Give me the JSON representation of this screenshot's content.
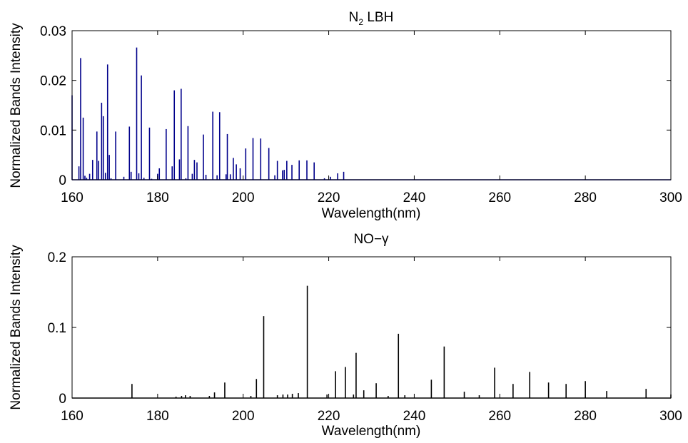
{
  "chart_data": [
    {
      "type": "bar",
      "title": "N",
      "title_subscript": "2",
      "title_rest": " LBH",
      "xlabel": "Wavelength(nm)",
      "ylabel": "Normalized Bands Intensity",
      "xlim": [
        160,
        300
      ],
      "ylim": [
        0,
        0.03
      ],
      "xticks": [
        "160",
        "180",
        "200",
        "220",
        "240",
        "260",
        "280",
        "300"
      ],
      "yticks": [
        "0",
        "0.01",
        "0.02",
        "0.03"
      ],
      "color": "#00008b",
      "grid": false,
      "x": [
        160.0,
        161.6,
        162.0,
        162.6,
        163.0,
        163.4,
        164.1,
        164.8,
        165.8,
        166.2,
        166.9,
        167.3,
        167.8,
        168.3,
        168.7,
        169.1,
        170.2,
        172.1,
        173.4,
        173.8,
        175.1,
        175.6,
        176.2,
        176.8,
        178.1,
        178.6,
        180.0,
        180.4,
        182.0,
        183.4,
        183.9,
        185.1,
        185.5,
        186.6,
        187.1,
        188.1,
        188.6,
        189.2,
        190.7,
        191.3,
        192.9,
        193.9,
        194.5,
        196.0,
        196.3,
        197.0,
        197.7,
        198.4,
        199.3,
        200.6,
        202.3,
        204.1,
        206.0,
        207.4,
        208.0,
        209.2,
        209.6,
        210.2,
        211.4,
        213.1,
        214.9,
        216.6,
        219.0,
        220.4,
        222.1,
        223.5
      ],
      "values": [
        0.017,
        0.0027,
        0.0245,
        0.0125,
        0.0008,
        0.0004,
        0.0012,
        0.004,
        0.0097,
        0.0038,
        0.0155,
        0.0128,
        0.0014,
        0.0232,
        0.005,
        0.0003,
        0.0097,
        0.0006,
        0.0107,
        0.0016,
        0.0266,
        0.0013,
        0.021,
        0.0004,
        0.0105,
        0.0002,
        0.0012,
        0.0023,
        0.0102,
        0.0027,
        0.018,
        0.0041,
        0.0183,
        0.0003,
        0.0108,
        0.0012,
        0.004,
        0.0035,
        0.0091,
        0.001,
        0.0137,
        0.0009,
        0.0136,
        0.0011,
        0.0092,
        0.0011,
        0.0044,
        0.0031,
        0.0023,
        0.0063,
        0.0084,
        0.0083,
        0.0064,
        0.0009,
        0.0038,
        0.0019,
        0.002,
        0.0038,
        0.003,
        0.0039,
        0.0039,
        0.0035,
        0.0003,
        0.0006,
        0.0013,
        0.0016
      ]
    },
    {
      "type": "bar",
      "title": "NO−γ",
      "xlabel": "Wavelength(nm)",
      "ylabel": "Normalized Bands Intensity",
      "xlim": [
        160,
        300
      ],
      "ylim": [
        0,
        0.2
      ],
      "xticks": [
        "160",
        "180",
        "200",
        "220",
        "240",
        "260",
        "280",
        "300"
      ],
      "yticks": [
        "0",
        "0.1",
        "0.2"
      ],
      "color": "#000000",
      "grid": false,
      "x": [
        174.0,
        184.3,
        185.6,
        186.5,
        187.6,
        192.1,
        193.3,
        195.7,
        201.8,
        203.1,
        204.8,
        208.0,
        209.3,
        210.4,
        211.5,
        212.9,
        215.0,
        219.6,
        221.6,
        223.9,
        225.8,
        226.4,
        228.2,
        231.1,
        233.9,
        236.3,
        237.8,
        244.0,
        247.0,
        251.7,
        255.2,
        258.8,
        263.1,
        267.0,
        271.4,
        275.5,
        280.0,
        285.0,
        294.2,
        300.0
      ],
      "values": [
        0.02,
        0.002,
        0.003,
        0.004,
        0.003,
        0.003,
        0.008,
        0.022,
        0.003,
        0.027,
        0.116,
        0.004,
        0.005,
        0.005,
        0.006,
        0.007,
        0.159,
        0.005,
        0.038,
        0.044,
        0.005,
        0.064,
        0.011,
        0.021,
        0.003,
        0.091,
        0.004,
        0.026,
        0.073,
        0.009,
        0.004,
        0.043,
        0.02,
        0.037,
        0.022,
        0.02,
        0.024,
        0.01,
        0.013,
        0.005
      ]
    }
  ]
}
